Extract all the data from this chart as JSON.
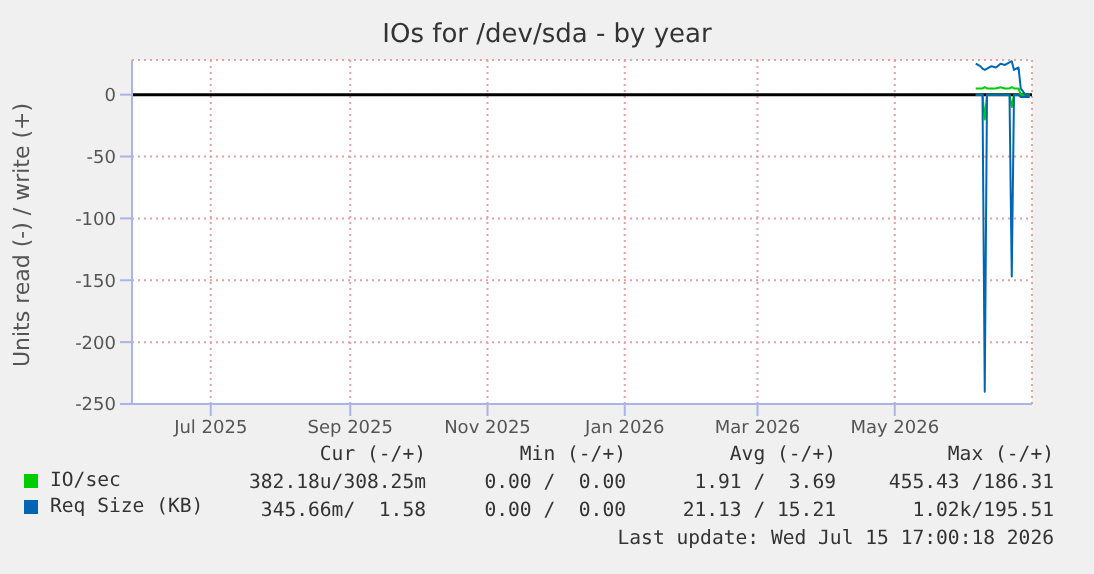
{
  "chart_data": {
    "type": "line",
    "title": "IOs for /dev/sda - by year",
    "ylabel": "Units read (-) / write (+)",
    "x": [
      "2026-06-06",
      "2026-06-08",
      "2026-06-09",
      "2026-06-10",
      "2026-06-11",
      "2026-06-13",
      "2026-06-15",
      "2026-06-17",
      "2026-06-19",
      "2026-06-21",
      "2026-06-22",
      "2026-06-23",
      "2026-06-25",
      "2026-06-26",
      "2026-06-28",
      "2026-06-30"
    ],
    "series": [
      {
        "color": "#00cc00",
        "values": [
          0,
          0,
          0,
          -20,
          0,
          0,
          0,
          0,
          0,
          0,
          -10,
          0,
          0,
          0,
          0,
          0
        ]
      },
      {
        "name": "IO/sec",
        "color": "#00cc00",
        "values": [
          5,
          5,
          5,
          6,
          5,
          5,
          5,
          6,
          5,
          5,
          6,
          5,
          5,
          0,
          0,
          0
        ]
      },
      {
        "color": "#0066b3",
        "values": [
          0,
          0,
          0,
          -240,
          0,
          0,
          0,
          0,
          0,
          0,
          -147,
          0,
          0,
          -2,
          -2,
          -2
        ]
      },
      {
        "name": "Req Size (KB)",
        "color": "#0066b3",
        "values": [
          25,
          23,
          21,
          20,
          21,
          23,
          22,
          25,
          24,
          26,
          27,
          20,
          22,
          5,
          0,
          0
        ]
      }
    ],
    "xlim": [
      "2025-05-27",
      "2026-07-01"
    ],
    "xticks": [
      {
        "value": "2025-07-01",
        "label": "Jul 2025"
      },
      {
        "value": "2025-09-01",
        "label": "Sep 2025"
      },
      {
        "value": "2025-11-01",
        "label": "Nov 2025"
      },
      {
        "value": "2026-01-01",
        "label": "Jan 2026"
      },
      {
        "value": "2026-03-01",
        "label": "Mar 2026"
      },
      {
        "value": "2026-05-01",
        "label": "May 2026"
      }
    ],
    "ylim": [
      -250,
      28
    ],
    "yticks": [
      -250,
      -200,
      -150,
      -100,
      -50,
      0
    ],
    "ref_lines": [
      {
        "axis": "y",
        "value": 0,
        "color": "#000000"
      }
    ],
    "grid": true,
    "legend": "bottom",
    "marker": "none",
    "line_style": "solid",
    "annotations": [
      "Cur (-/+)",
      "Min (-/+)",
      "Avg (-/+)",
      "Max (-/+)",
      "382.18u/308.25m",
      "0.00 /  0.00",
      "1.91 /  3.69",
      "455.43 /186.31",
      "345.66m/  1.58",
      "0.00 /  0.00",
      "21.13 / 15.21",
      "1.02k/195.51",
      "Last update: Wed Jul 15 17:00:18 2026"
    ]
  }
}
